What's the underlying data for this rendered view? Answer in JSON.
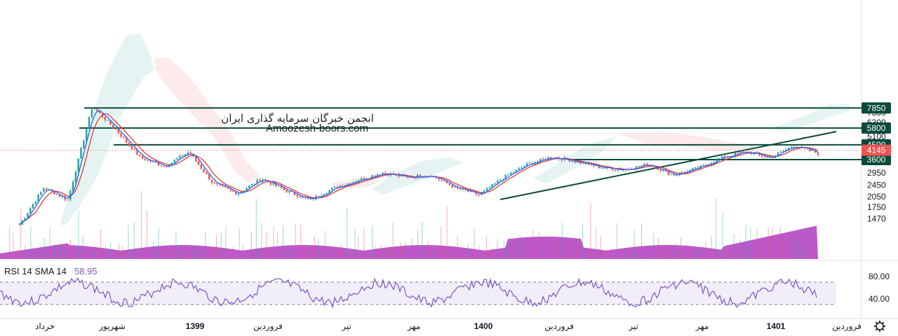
{
  "watermark": {
    "line1": "انجمن خبرگان سرمایه گذاری ایران",
    "line2": "Amoozesh-boors.com"
  },
  "rsi": {
    "title": "RSI 14 SMA 14",
    "value": "58.95",
    "levels": [
      "80.00",
      "40.00"
    ]
  },
  "settings": {
    "icon": "gear-icon"
  },
  "colors": {
    "candle_up": "#26a69a",
    "candle_down": "#ef5350",
    "level_line": "#0b4a3a",
    "ma_red": "#e53935",
    "ma_blue": "#2962ff",
    "volume_area": "#b23bc0",
    "rsi_line": "#7e57c2",
    "price_tag": "#ef5350"
  },
  "chart_data": {
    "type": "candlestick",
    "y_axis": {
      "scale": "log",
      "range": [
        1300,
        8300
      ],
      "ticks": [
        "7300",
        "6300",
        "5100",
        "3600",
        "2950",
        "2450",
        "2050",
        "1750",
        "1470"
      ]
    },
    "x_axis": {
      "labels": [
        {
          "text": "خرداد",
          "bold": false
        },
        {
          "text": "شهریور",
          "bold": false
        },
        {
          "text": "1399",
          "bold": true
        },
        {
          "text": "فروردین",
          "bold": false
        },
        {
          "text": "تیر",
          "bold": false
        },
        {
          "text": "مهر",
          "bold": false
        },
        {
          "text": "1400",
          "bold": true
        },
        {
          "text": "فروردین",
          "bold": false
        },
        {
          "text": "تیر",
          "bold": false
        },
        {
          "text": "مهر",
          "bold": false
        },
        {
          "text": "1401",
          "bold": true
        },
        {
          "text": "فروردین",
          "bold": false
        }
      ]
    },
    "levels": [
      {
        "value": 7850,
        "label": "7850"
      },
      {
        "value": 5800,
        "label": "5800"
      },
      {
        "value": 4500,
        "label": "4500"
      },
      {
        "value": 3600,
        "label": "3600"
      }
    ],
    "last_price": {
      "value": 4145,
      "label": "4145"
    },
    "price_path": [
      1350,
      2350,
      1950,
      8050,
      5600,
      3700,
      3250,
      4050,
      2500,
      2150,
      2700,
      2250,
      1950,
      2350,
      2650,
      2950,
      2750,
      2850,
      2350,
      2100,
      2750,
      3350,
      3750,
      3500,
      3200,
      3100,
      3350,
      2850,
      3150,
      3700,
      4050,
      3700,
      4450,
      3950
    ]
  }
}
